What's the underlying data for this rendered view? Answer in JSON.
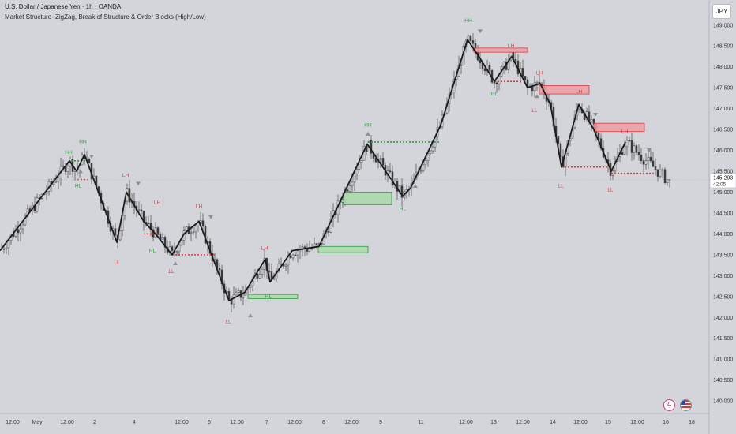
{
  "header": {
    "symbol": "U.S. Dollar / Japanese Yen · 1h · OANDA",
    "indicator": "Market Structure- ZigZag, Break of Structure & Order Blocks (High/Low)"
  },
  "currency_button": "JPY",
  "price_label": {
    "value": "145.293",
    "countdown": "42:05",
    "price": 145.293
  },
  "colors": {
    "background": "#d3d5db",
    "zigzag": "#1c1c1c",
    "bull": "#2e9e3f",
    "bear": "#e0393b",
    "bull_zone_fill": "#a9d8a9",
    "bear_zone_fill": "#ec9ea3"
  },
  "icons": [
    "bolt-icon",
    "us-flag-icon"
  ],
  "chart_data": {
    "type": "line",
    "title": "",
    "subtitle": "",
    "xlabel": "",
    "ylabel": "",
    "grid": false,
    "legend": "none",
    "ylim": [
      139.7,
      149.6
    ],
    "xlim": [
      0,
      885
    ],
    "y_ticks": [
      149.0,
      148.5,
      148.0,
      147.5,
      147.0,
      146.5,
      146.0,
      145.5,
      145.0,
      144.5,
      144.0,
      143.5,
      143.0,
      142.5,
      142.0,
      141.5,
      141.0,
      140.5,
      140.0
    ],
    "y_tick_labels": [
      "149.000",
      "148.500",
      "148.000",
      "147.500",
      "147.000",
      "146.500",
      "146.000",
      "145.500",
      "145.000",
      "144.500",
      "144.000",
      "143.500",
      "143.000",
      "142.500",
      "142.000",
      "141.500",
      "141.000",
      "140.500",
      "140.000"
    ],
    "x_ticks": [
      {
        "x": 16,
        "label": "12:00"
      },
      {
        "x": 47,
        "label": "May"
      },
      {
        "x": 85,
        "label": "12:00"
      },
      {
        "x": 120,
        "label": "2"
      },
      {
        "x": 170,
        "label": "4"
      },
      {
        "x": 230,
        "label": "12:00"
      },
      {
        "x": 265,
        "label": "6"
      },
      {
        "x": 300,
        "label": "12:00"
      },
      {
        "x": 338,
        "label": "7"
      },
      {
        "x": 373,
        "label": "12:00"
      },
      {
        "x": 410,
        "label": "8"
      },
      {
        "x": 445,
        "label": "12:00"
      },
      {
        "x": 482,
        "label": "9"
      },
      {
        "x": 533,
        "label": "11"
      },
      {
        "x": 590,
        "label": "12:00"
      },
      {
        "x": 625,
        "label": "13"
      },
      {
        "x": 662,
        "label": "12:00"
      },
      {
        "x": 700,
        "label": "14"
      },
      {
        "x": 735,
        "label": "12:00"
      },
      {
        "x": 770,
        "label": "15"
      },
      {
        "x": 807,
        "label": "12:00"
      },
      {
        "x": 843,
        "label": "16"
      },
      {
        "x": 876,
        "label": "18"
      }
    ],
    "series": [
      {
        "name": "",
        "points": [
          [
            0,
            143.6
          ],
          [
            88,
            145.75
          ],
          [
            97,
            145.5
          ],
          [
            107,
            145.9
          ],
          [
            148,
            143.8
          ],
          [
            160,
            145.0
          ],
          [
            182,
            144.3
          ],
          [
            197,
            144.0
          ],
          [
            218,
            143.5
          ],
          [
            233,
            144.0
          ],
          [
            252,
            144.3
          ],
          [
            290,
            142.4
          ],
          [
            310,
            142.6
          ],
          [
            336,
            143.4
          ],
          [
            342,
            142.85
          ],
          [
            370,
            143.6
          ],
          [
            404,
            143.7
          ],
          [
            465,
            146.15
          ],
          [
            510,
            144.9
          ],
          [
            520,
            145.1
          ],
          [
            558,
            146.6
          ],
          [
            592,
            148.65
          ],
          [
            608,
            148.2
          ],
          [
            626,
            147.65
          ],
          [
            648,
            148.25
          ],
          [
            668,
            147.5
          ],
          [
            684,
            147.6
          ],
          [
            697,
            147.1
          ],
          [
            711,
            145.6
          ],
          [
            733,
            147.1
          ],
          [
            752,
            146.5
          ],
          [
            774,
            145.5
          ],
          [
            792,
            146.2
          ]
        ]
      }
    ],
    "annotations": [
      {
        "text": "HH",
        "x": 87,
        "y": 145.95,
        "color": "bull"
      },
      {
        "text": "HH",
        "x": 105,
        "y": 146.2,
        "color": "bull"
      },
      {
        "text": "HL",
        "x": 99,
        "y": 145.15,
        "color": "bull"
      },
      {
        "text": "LH",
        "x": 159,
        "y": 145.4,
        "color": "bear"
      },
      {
        "text": "LL",
        "x": 148,
        "y": 143.3,
        "color": "bear"
      },
      {
        "text": "LH",
        "x": 199,
        "y": 144.75,
        "color": "bear"
      },
      {
        "text": "HL",
        "x": 193,
        "y": 143.6,
        "color": "bull"
      },
      {
        "text": "LL",
        "x": 217,
        "y": 143.1,
        "color": "bear"
      },
      {
        "text": "LH",
        "x": 252,
        "y": 144.65,
        "color": "bear"
      },
      {
        "text": "LL",
        "x": 289,
        "y": 141.9,
        "color": "bear"
      },
      {
        "text": "HL",
        "x": 340,
        "y": 142.5,
        "color": "bull"
      },
      {
        "text": "LH",
        "x": 335,
        "y": 143.65,
        "color": "bear"
      },
      {
        "text": "HH",
        "x": 466,
        "y": 146.6,
        "color": "bull"
      },
      {
        "text": "HL",
        "x": 510,
        "y": 144.6,
        "color": "bull"
      },
      {
        "text": "HH",
        "x": 593,
        "y": 149.1,
        "color": "bull"
      },
      {
        "text": "LH",
        "x": 647,
        "y": 148.5,
        "color": "bear"
      },
      {
        "text": "HL",
        "x": 626,
        "y": 147.35,
        "color": "bull"
      },
      {
        "text": "LH",
        "x": 683,
        "y": 147.85,
        "color": "bear"
      },
      {
        "text": "LL",
        "x": 677,
        "y": 146.95,
        "color": "bear"
      },
      {
        "text": "LH",
        "x": 733,
        "y": 147.4,
        "color": "bear"
      },
      {
        "text": "LL",
        "x": 710,
        "y": 145.15,
        "color": "bear"
      },
      {
        "text": "LH",
        "x": 791,
        "y": 146.45,
        "color": "bear"
      },
      {
        "text": "LL",
        "x": 773,
        "y": 145.05,
        "color": "bear"
      }
    ],
    "order_blocks": [
      {
        "kind": "bull",
        "x1": 314,
        "x2": 377,
        "y_low": 142.45,
        "y_high": 142.55
      },
      {
        "kind": "bull",
        "x1": 403,
        "x2": 466,
        "y_low": 143.55,
        "y_high": 143.7
      },
      {
        "kind": "bull",
        "x1": 435,
        "x2": 496,
        "y_low": 144.7,
        "y_high": 145.0
      },
      {
        "kind": "bear",
        "x1": 600,
        "x2": 668,
        "y_low": 148.35,
        "y_high": 148.45
      },
      {
        "kind": "bear",
        "x1": 683,
        "x2": 746,
        "y_low": 147.35,
        "y_high": 147.55
      },
      {
        "kind": "bear",
        "x1": 752,
        "x2": 816,
        "y_low": 146.45,
        "y_high": 146.65
      }
    ],
    "bos_lines": [
      {
        "kind": "bull",
        "x1": 90,
        "x2": 112,
        "y": 145.75
      },
      {
        "kind": "bear",
        "x1": 98,
        "x2": 112,
        "y": 145.3
      },
      {
        "kind": "bear",
        "x1": 182,
        "x2": 201,
        "y": 144.0
      },
      {
        "kind": "bear",
        "x1": 218,
        "x2": 272,
        "y": 143.5
      },
      {
        "kind": "bull",
        "x1": 466,
        "x2": 558,
        "y": 146.2
      },
      {
        "kind": "bear",
        "x1": 626,
        "x2": 660,
        "y": 147.65
      },
      {
        "kind": "bear",
        "x1": 711,
        "x2": 770,
        "y": 145.6
      },
      {
        "kind": "bear",
        "x1": 774,
        "x2": 828,
        "y": 145.45
      }
    ],
    "swing_markers": [
      {
        "x": 116,
        "y": 145.85,
        "dir": "down"
      },
      {
        "x": 175,
        "y": 145.2,
        "dir": "down"
      },
      {
        "x": 267,
        "y": 144.4,
        "dir": "down"
      },
      {
        "x": 608,
        "y": 148.85,
        "dir": "down"
      },
      {
        "x": 754,
        "y": 146.85,
        "dir": "down"
      },
      {
        "x": 822,
        "y": 146.0,
        "dir": "down"
      },
      {
        "x": 102,
        "y": 145.5,
        "dir": "up"
      },
      {
        "x": 222,
        "y": 143.3,
        "dir": "up"
      },
      {
        "x": 317,
        "y": 142.05,
        "dir": "up"
      },
      {
        "x": 526,
        "y": 145.15,
        "dir": "up"
      },
      {
        "x": 680,
        "y": 147.3,
        "dir": "up"
      },
      {
        "x": 466,
        "y": 146.4,
        "dir": "up"
      }
    ]
  }
}
